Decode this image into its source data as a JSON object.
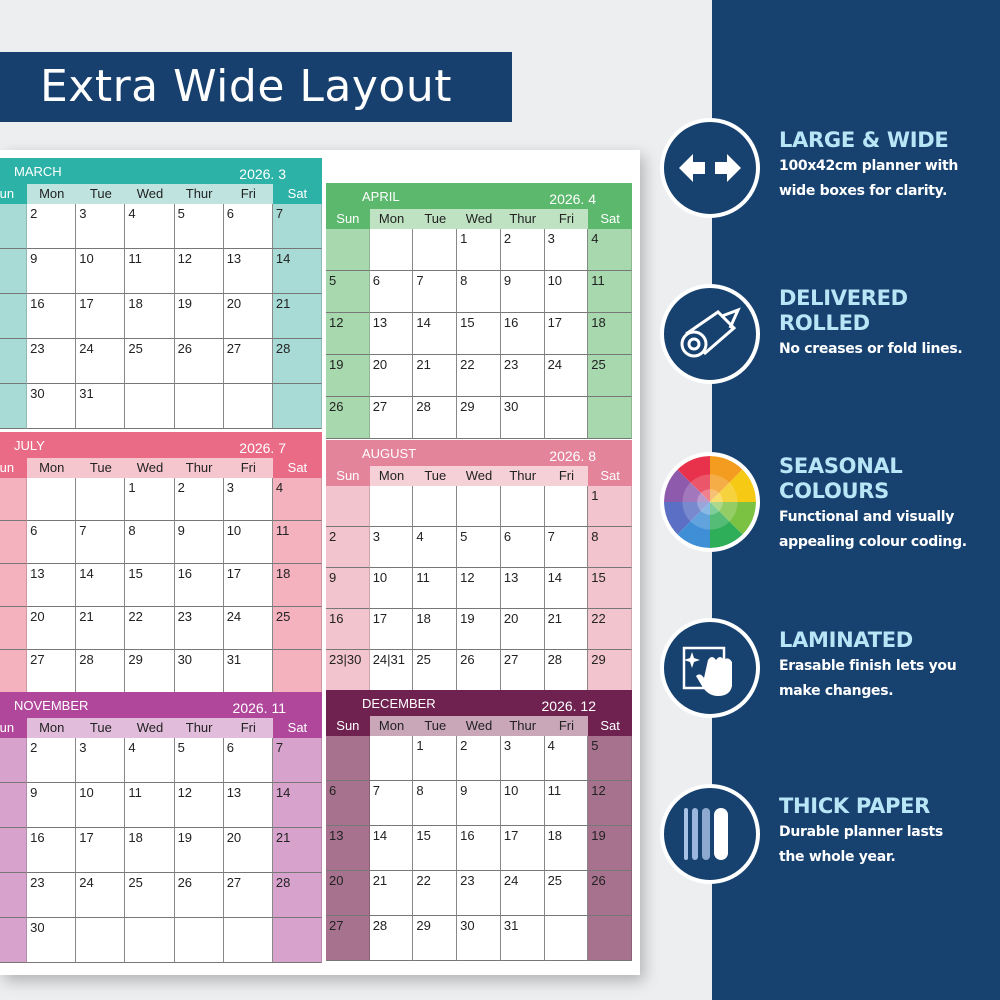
{
  "banner": {
    "title": "Extra Wide Layout",
    "color": "#17406e"
  },
  "day_names": [
    "Sun",
    "Mon",
    "Tue",
    "Wed",
    "Thur",
    "Fri",
    "Sat"
  ],
  "months": [
    {
      "name": "MARCH",
      "year": "2026. 3",
      "color": "#2db2a7",
      "light": "#a9dbd6",
      "strip": "#bfe4e0",
      "weeks": [
        [
          "",
          "2",
          "3",
          "4",
          "5",
          "6",
          "7"
        ],
        [
          "",
          "9",
          "10",
          "11",
          "12",
          "13",
          "14"
        ],
        [
          "",
          "16",
          "17",
          "18",
          "19",
          "20",
          "21"
        ],
        [
          "",
          "23",
          "24",
          "25",
          "26",
          "27",
          "28"
        ],
        [
          "",
          "30",
          "31",
          "",
          "",
          "",
          ""
        ]
      ]
    },
    {
      "name": "APRIL",
      "year": "2026. 4",
      "color": "#5bb86c",
      "light": "#a8d8ad",
      "strip": "#bfe3c2",
      "weeks": [
        [
          "",
          "",
          "",
          "1",
          "2",
          "3",
          "4"
        ],
        [
          "5",
          "6",
          "7",
          "8",
          "9",
          "10",
          "11"
        ],
        [
          "12",
          "13",
          "14",
          "15",
          "16",
          "17",
          "18"
        ],
        [
          "19",
          "20",
          "21",
          "22",
          "23",
          "24",
          "25"
        ],
        [
          "26",
          "27",
          "28",
          "29",
          "30",
          "",
          ""
        ]
      ]
    },
    {
      "name": "JULY",
      "year": "2026. 7",
      "color": "#e96b86",
      "light": "#f4b2be",
      "strip": "#f6c6ce",
      "weeks": [
        [
          "",
          "",
          "",
          "1",
          "2",
          "3",
          "4"
        ],
        [
          "",
          "6",
          "7",
          "8",
          "9",
          "10",
          "11"
        ],
        [
          "",
          "13",
          "14",
          "15",
          "16",
          "17",
          "18"
        ],
        [
          "",
          "20",
          "21",
          "22",
          "23",
          "24",
          "25"
        ],
        [
          "",
          "27",
          "28",
          "29",
          "30",
          "31",
          ""
        ]
      ]
    },
    {
      "name": "AUGUST",
      "year": "2026. 8",
      "color": "#e3849a",
      "light": "#f2c4cd",
      "strip": "#f5d0d7",
      "weeks": [
        [
          "",
          "",
          "",
          "",
          "",
          "",
          "1"
        ],
        [
          "2",
          "3",
          "4",
          "5",
          "6",
          "7",
          "8"
        ],
        [
          "9",
          "10",
          "11",
          "12",
          "13",
          "14",
          "15"
        ],
        [
          "16",
          "17",
          "18",
          "19",
          "20",
          "21",
          "22"
        ],
        [
          "23|30",
          "24|31",
          "25",
          "26",
          "27",
          "28",
          "29"
        ]
      ]
    },
    {
      "name": "NOVEMBER",
      "year": "2026. 11",
      "color": "#b0479b",
      "light": "#d7a3cd",
      "strip": "#e2bddb",
      "weeks": [
        [
          "",
          "2",
          "3",
          "4",
          "5",
          "6",
          "7"
        ],
        [
          "",
          "9",
          "10",
          "11",
          "12",
          "13",
          "14"
        ],
        [
          "",
          "16",
          "17",
          "18",
          "19",
          "20",
          "21"
        ],
        [
          "",
          "23",
          "24",
          "25",
          "26",
          "27",
          "28"
        ],
        [
          "",
          "30",
          "",
          "",
          "",
          "",
          ""
        ]
      ]
    },
    {
      "name": "DECEMBER",
      "year": "2026. 12",
      "color": "#6f2150",
      "light": "#a7728e",
      "strip": "#c9a7b9",
      "weeks": [
        [
          "",
          "",
          "1",
          "2",
          "3",
          "4",
          "5"
        ],
        [
          "6",
          "7",
          "8",
          "9",
          "10",
          "11",
          "12"
        ],
        [
          "13",
          "14",
          "15",
          "16",
          "17",
          "18",
          "19"
        ],
        [
          "20",
          "21",
          "22",
          "23",
          "24",
          "25",
          "26"
        ],
        [
          "27",
          "28",
          "29",
          "30",
          "31",
          "",
          ""
        ]
      ]
    }
  ],
  "features": [
    {
      "icon": "arrows-left-right-icon",
      "title": [
        "LARGE & WIDE"
      ],
      "desc": [
        "100x42cm  planner with",
        "wide boxes for clarity."
      ]
    },
    {
      "icon": "rolled-paper-icon",
      "title": [
        "DELIVERED",
        "ROLLED"
      ],
      "desc": [
        "No creases or fold lines."
      ]
    },
    {
      "icon": "color-wheel-icon",
      "title": [
        "SEASONAL",
        "COLOURS"
      ],
      "desc": [
        "Functional and visually",
        "appealing colour coding."
      ]
    },
    {
      "icon": "hand-wipe-icon",
      "title": [
        "LAMINATED"
      ],
      "desc": [
        "Erasable finish lets you",
        "make changes."
      ]
    },
    {
      "icon": "paper-layers-icon",
      "title": [
        "THICK PAPER"
      ],
      "desc": [
        "Durable planner lasts",
        "the whole year."
      ]
    }
  ],
  "side_color": "#17416f"
}
